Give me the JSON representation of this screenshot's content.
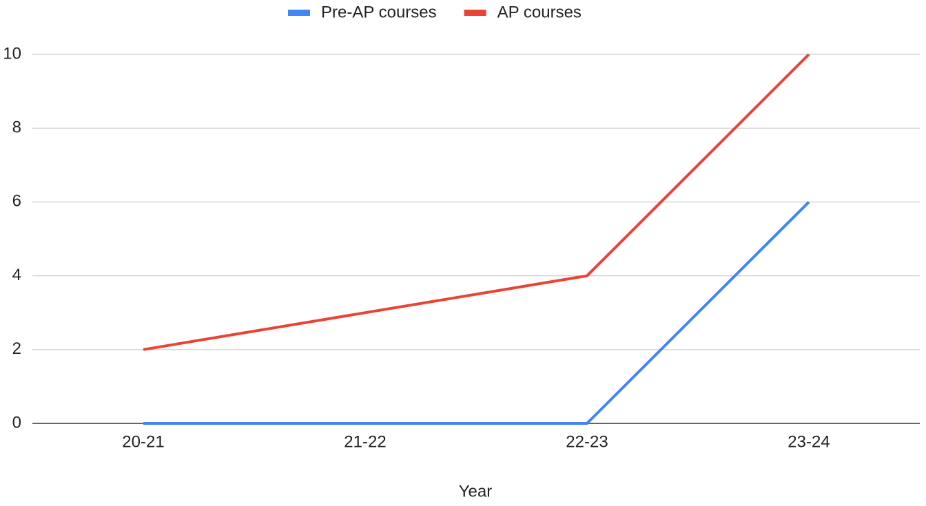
{
  "chart_data": {
    "type": "line",
    "x_label": "Year",
    "categories": [
      "20-21",
      "21-22",
      "22-23",
      "23-24"
    ],
    "series": [
      {
        "name": "Pre-AP courses",
        "color": "#4285f4",
        "values": [
          0,
          0,
          0,
          6
        ]
      },
      {
        "name": "AP courses",
        "color": "#ea4335",
        "values": [
          2,
          3,
          4,
          10
        ]
      }
    ],
    "ylim": [
      0,
      10
    ],
    "yticks": [
      0,
      2,
      4,
      6,
      8,
      10
    ],
    "grid": true,
    "legend": "top"
  }
}
